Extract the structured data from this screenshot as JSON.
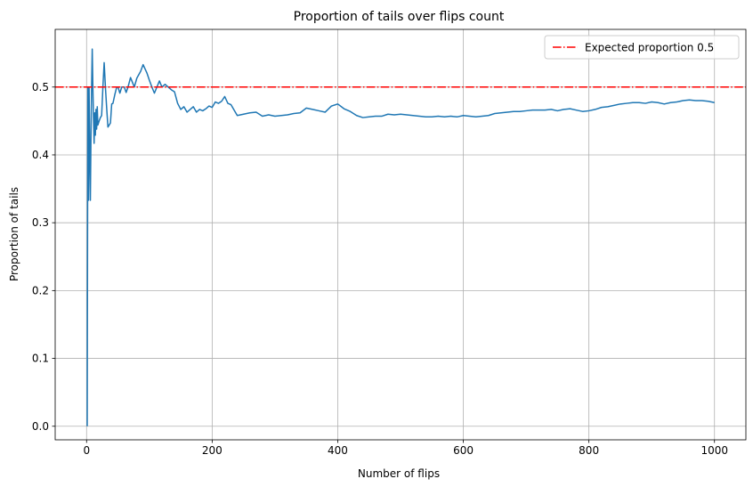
{
  "chart_data": {
    "type": "line",
    "title": "Proportion of tails over flips count",
    "xlabel": "Number of flips",
    "ylabel": "Proportion of tails",
    "xlim": [
      -50,
      1050
    ],
    "ylim": [
      -0.02,
      0.585
    ],
    "xticks": [
      0,
      200,
      400,
      600,
      800,
      1000
    ],
    "yticks": [
      0.0,
      0.1,
      0.2,
      0.3,
      0.4,
      0.5
    ],
    "xtick_labels": [
      "0",
      "200",
      "400",
      "600",
      "800",
      "1000"
    ],
    "ytick_labels": [
      "0.0",
      "0.1",
      "0.2",
      "0.3",
      "0.4",
      "0.5"
    ],
    "grid": true,
    "legend_position": "top-right",
    "series": [
      {
        "color": "#1f77b4",
        "x": [
          1,
          2,
          3,
          4,
          5,
          6,
          7,
          8,
          9,
          10,
          11,
          12,
          13,
          14,
          15,
          16,
          17,
          18,
          20,
          22,
          24,
          26,
          28,
          30,
          32,
          34,
          36,
          38,
          40,
          42,
          45,
          48,
          50,
          53,
          56,
          60,
          63,
          66,
          70,
          73,
          76,
          80,
          83,
          86,
          90,
          93,
          96,
          100,
          104,
          108,
          112,
          116,
          120,
          125,
          130,
          135,
          140,
          145,
          150,
          155,
          160,
          165,
          170,
          175,
          180,
          185,
          190,
          195,
          200,
          205,
          210,
          215,
          220,
          225,
          230,
          240,
          250,
          260,
          270,
          280,
          290,
          300,
          310,
          320,
          330,
          340,
          350,
          360,
          370,
          380,
          390,
          400,
          410,
          420,
          430,
          440,
          450,
          460,
          470,
          480,
          490,
          500,
          510,
          520,
          530,
          540,
          550,
          560,
          570,
          580,
          590,
          600,
          610,
          620,
          630,
          640,
          650,
          660,
          670,
          680,
          690,
          700,
          710,
          720,
          730,
          740,
          750,
          760,
          770,
          780,
          790,
          800,
          810,
          820,
          830,
          840,
          850,
          860,
          870,
          880,
          890,
          900,
          910,
          920,
          930,
          940,
          950,
          960,
          970,
          980,
          990,
          1000
        ],
        "y": [
          0.0,
          0.5,
          0.333,
          0.5,
          0.4,
          0.333,
          0.429,
          0.5,
          0.556,
          0.5,
          0.455,
          0.417,
          0.462,
          0.429,
          0.467,
          0.438,
          0.471,
          0.444,
          0.45,
          0.455,
          0.458,
          0.5,
          0.536,
          0.5,
          0.469,
          0.441,
          0.444,
          0.447,
          0.475,
          0.476,
          0.489,
          0.5,
          0.5,
          0.491,
          0.5,
          0.5,
          0.492,
          0.5,
          0.514,
          0.507,
          0.5,
          0.513,
          0.518,
          0.523,
          0.533,
          0.527,
          0.521,
          0.51,
          0.5,
          0.491,
          0.5,
          0.509,
          0.5,
          0.504,
          0.5,
          0.496,
          0.493,
          0.476,
          0.467,
          0.471,
          0.463,
          0.467,
          0.471,
          0.463,
          0.467,
          0.465,
          0.468,
          0.472,
          0.47,
          0.478,
          0.476,
          0.479,
          0.486,
          0.476,
          0.474,
          0.458,
          0.46,
          0.462,
          0.463,
          0.457,
          0.459,
          0.457,
          0.458,
          0.459,
          0.461,
          0.462,
          0.469,
          0.467,
          0.465,
          0.463,
          0.472,
          0.475,
          0.468,
          0.464,
          0.458,
          0.455,
          0.456,
          0.457,
          0.457,
          0.46,
          0.459,
          0.46,
          0.459,
          0.458,
          0.457,
          0.456,
          0.456,
          0.457,
          0.456,
          0.457,
          0.456,
          0.458,
          0.457,
          0.456,
          0.457,
          0.458,
          0.461,
          0.462,
          0.463,
          0.464,
          0.464,
          0.465,
          0.466,
          0.466,
          0.466,
          0.467,
          0.465,
          0.467,
          0.468,
          0.466,
          0.464,
          0.465,
          0.467,
          0.47,
          0.471,
          0.473,
          0.475,
          0.476,
          0.477,
          0.477,
          0.476,
          0.478,
          0.477,
          0.475,
          0.477,
          0.478,
          0.48,
          0.481,
          0.48,
          0.48,
          0.479,
          0.477
        ]
      }
    ],
    "reference_line": {
      "y": 0.5,
      "color": "#ff0000",
      "style": "dash-dot",
      "label": "Expected proportion 0.5"
    }
  }
}
